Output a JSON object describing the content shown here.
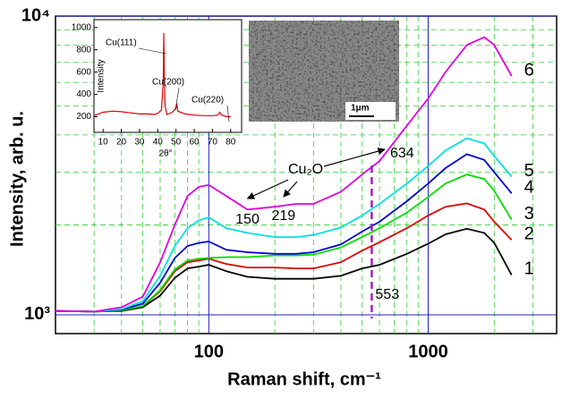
{
  "chart_data": [
    {
      "type": "line",
      "log_x": true,
      "log_y": true,
      "xlabel": "Raman shift, cm⁻¹",
      "ylabel": "Intensity, arb. u.",
      "xlim": [
        20,
        3850
      ],
      "ylim": [
        865,
        10000
      ],
      "xticks": [
        100,
        1000
      ],
      "yticks": [
        {
          "value": 1000,
          "label": "10³"
        },
        {
          "value": 10000,
          "label": "10⁴"
        }
      ],
      "minor_xticks": [
        30,
        40,
        50,
        60,
        70,
        80,
        90,
        200,
        300,
        400,
        500,
        600,
        700,
        800,
        900,
        2000,
        3000
      ],
      "minor_yticks": [
        2000,
        3000,
        4000,
        5000,
        6000,
        7000,
        8000,
        9000
      ],
      "grid": true,
      "x": [
        20,
        30,
        40,
        50,
        60,
        70,
        80,
        90,
        100,
        120,
        150,
        200,
        250,
        300,
        400,
        500,
        600,
        800,
        1000,
        1200,
        1500,
        1800,
        2000,
        2400
      ],
      "series": [
        {
          "name": "1",
          "color": "#000000",
          "values": [
            1030,
            1025,
            1030,
            1060,
            1160,
            1330,
            1430,
            1450,
            1470,
            1400,
            1340,
            1320,
            1320,
            1320,
            1350,
            1430,
            1470,
            1600,
            1730,
            1860,
            1940,
            1880,
            1740,
            1360
          ]
        },
        {
          "name": "2",
          "color": "#e00000",
          "values": [
            1030,
            1025,
            1035,
            1070,
            1200,
            1400,
            1500,
            1520,
            1540,
            1480,
            1440,
            1440,
            1430,
            1430,
            1500,
            1640,
            1750,
            1950,
            2150,
            2300,
            2360,
            2250,
            2050,
            1780
          ]
        },
        {
          "name": "3",
          "color": "#00dd00",
          "values": [
            1030,
            1025,
            1035,
            1070,
            1210,
            1420,
            1520,
            1540,
            1550,
            1560,
            1560,
            1580,
            1580,
            1590,
            1680,
            1820,
            1950,
            2200,
            2480,
            2750,
            2950,
            2850,
            2600,
            2080
          ]
        },
        {
          "name": "4",
          "color": "#0000d0",
          "values": [
            1030,
            1025,
            1040,
            1090,
            1280,
            1550,
            1700,
            1740,
            1760,
            1650,
            1620,
            1600,
            1600,
            1620,
            1720,
            1900,
            2050,
            2400,
            2750,
            3100,
            3450,
            3300,
            3000,
            2550
          ]
        },
        {
          "name": "5",
          "color": "#00e0e0",
          "values": [
            1030,
            1025,
            1045,
            1110,
            1350,
            1700,
            1950,
            2070,
            2120,
            1950,
            1880,
            1820,
            1820,
            1850,
            1960,
            2150,
            2350,
            2750,
            3150,
            3550,
            3900,
            3750,
            3400,
            2900
          ]
        },
        {
          "name": "6",
          "color": "#e000e0",
          "values": [
            1030,
            1025,
            1060,
            1150,
            1500,
            2000,
            2500,
            2680,
            2720,
            2500,
            2250,
            2300,
            2350,
            2350,
            2580,
            2950,
            3270,
            4300,
            5300,
            6500,
            8000,
            8500,
            8000,
            6300
          ]
        }
      ],
      "annotation": "Cu₂O",
      "peaks": [
        150,
        219,
        634
      ],
      "vline": {
        "value": 553,
        "color": "#a020c0"
      }
    },
    {
      "type": "line",
      "xlabel": "2θ°",
      "ylabel": "Intensity",
      "xlim": [
        5,
        86
      ],
      "ylim": [
        60,
        1070
      ],
      "xticks": [
        10,
        20,
        30,
        40,
        50,
        60,
        70,
        80
      ],
      "yticks": [
        200,
        400,
        600,
        800,
        1000
      ],
      "x": [
        5,
        10,
        15,
        20,
        25,
        30,
        35,
        38,
        40,
        42,
        43,
        43.3,
        43.6,
        44,
        45,
        48,
        50,
        50.4,
        51,
        55,
        60,
        65,
        70,
        73,
        74,
        75,
        78,
        80
      ],
      "series": [
        {
          "color": "#e00000",
          "values": [
            210,
            240,
            250,
            245,
            235,
            225,
            225,
            220,
            230,
            260,
            500,
            950,
            600,
            300,
            220,
            240,
            280,
            320,
            250,
            225,
            215,
            210,
            210,
            215,
            240,
            215,
            200,
            200
          ]
        }
      ],
      "labels": [
        "Cu(111)",
        "Cu(200)",
        "Cu(220)"
      ],
      "scale_bar": "1μm"
    }
  ]
}
